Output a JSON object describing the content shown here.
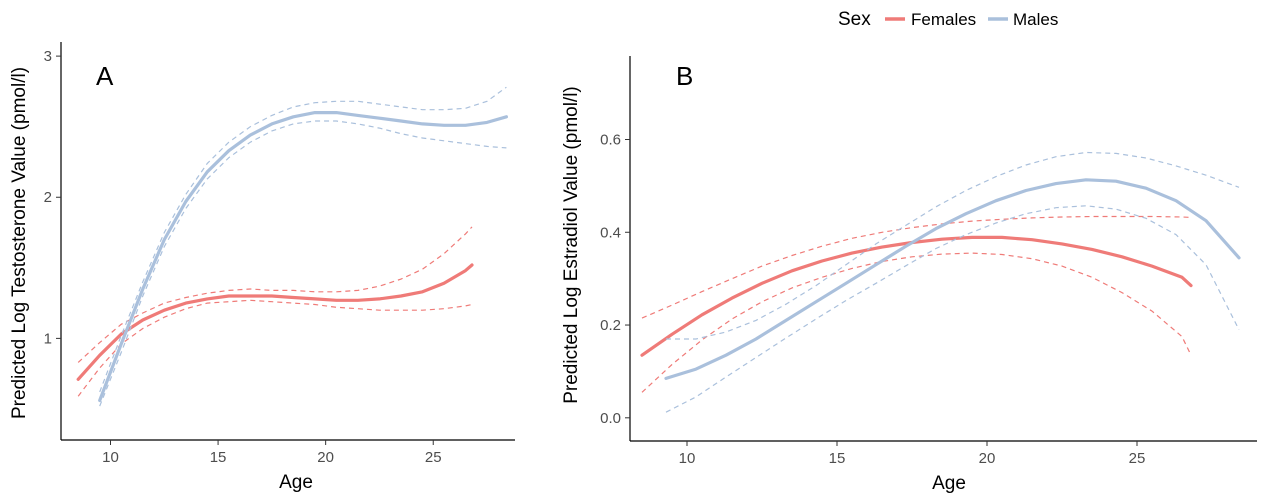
{
  "legend": {
    "title": "Sex",
    "items": [
      {
        "label": "Females",
        "color": "#ef7b78"
      },
      {
        "label": "Males",
        "color": "#aac0dc"
      }
    ]
  },
  "chart_data": [
    {
      "type": "line",
      "panel_label": "A",
      "xlabel": "Age",
      "ylabel": "Predicted Log Testosterone Value (pmol/l)",
      "xlim": [
        7.7,
        28.8
      ],
      "ylim": [
        0.28,
        3.1
      ],
      "xticks": [
        10,
        15,
        20,
        25
      ],
      "yticks": [
        1,
        2,
        3
      ],
      "grid": false,
      "legend_position": "top",
      "series": [
        {
          "name": "Females",
          "color": "#ef7b78",
          "x": [
            8.5,
            9.5,
            10.5,
            11.5,
            12.5,
            13.5,
            14.5,
            15.5,
            16.5,
            17.5,
            18.5,
            19.5,
            20.5,
            21.5,
            22.5,
            23.5,
            24.5,
            25.5,
            26.5,
            26.8
          ],
          "fit": [
            0.71,
            0.88,
            1.03,
            1.13,
            1.2,
            1.25,
            1.28,
            1.3,
            1.3,
            1.3,
            1.29,
            1.28,
            1.27,
            1.27,
            1.28,
            1.3,
            1.33,
            1.39,
            1.48,
            1.52
          ],
          "upper": [
            0.83,
            0.97,
            1.1,
            1.18,
            1.25,
            1.29,
            1.32,
            1.34,
            1.35,
            1.34,
            1.34,
            1.33,
            1.33,
            1.34,
            1.37,
            1.42,
            1.49,
            1.6,
            1.74,
            1.79
          ],
          "lower": [
            0.59,
            0.79,
            0.96,
            1.07,
            1.15,
            1.21,
            1.25,
            1.26,
            1.27,
            1.26,
            1.25,
            1.24,
            1.22,
            1.21,
            1.2,
            1.2,
            1.2,
            1.21,
            1.23,
            1.24
          ]
        },
        {
          "name": "Males",
          "color": "#aac0dc",
          "x": [
            9.5,
            10.5,
            11.5,
            12.5,
            13.5,
            14.5,
            15.5,
            16.5,
            17.5,
            18.5,
            19.5,
            20.5,
            21.5,
            22.5,
            23.5,
            24.5,
            25.5,
            26.5,
            27.5,
            28.4
          ],
          "fit": [
            0.56,
            0.96,
            1.35,
            1.7,
            1.97,
            2.18,
            2.33,
            2.44,
            2.52,
            2.57,
            2.6,
            2.6,
            2.58,
            2.56,
            2.54,
            2.52,
            2.51,
            2.51,
            2.53,
            2.57
          ],
          "upper": [
            0.62,
            1.02,
            1.4,
            1.75,
            2.02,
            2.24,
            2.39,
            2.5,
            2.58,
            2.64,
            2.67,
            2.68,
            2.68,
            2.66,
            2.64,
            2.62,
            2.62,
            2.63,
            2.68,
            2.78
          ],
          "lower": [
            0.52,
            0.9,
            1.3,
            1.65,
            1.92,
            2.13,
            2.28,
            2.39,
            2.47,
            2.52,
            2.54,
            2.54,
            2.52,
            2.49,
            2.45,
            2.42,
            2.4,
            2.38,
            2.36,
            2.35
          ]
        }
      ]
    },
    {
      "type": "line",
      "panel_label": "B",
      "xlabel": "Age",
      "ylabel": "Predicted Log Estradiol Value (pmol/l)",
      "xlim": [
        8.1,
        29.0
      ],
      "ylim": [
        -0.05,
        0.78
      ],
      "xticks": [
        10,
        15,
        20,
        25
      ],
      "yticks": [
        0.0,
        0.2,
        0.4,
        0.6
      ],
      "ytick_labels": [
        "0.0",
        "0.2",
        "0.4",
        "0.6"
      ],
      "grid": false,
      "series": [
        {
          "name": "Females",
          "color": "#ef7b78",
          "x": [
            8.5,
            9.5,
            10.5,
            11.5,
            12.5,
            13.5,
            14.5,
            15.5,
            16.5,
            17.5,
            18.5,
            19.5,
            20.5,
            21.5,
            22.5,
            23.5,
            24.5,
            25.5,
            26.5,
            26.8
          ],
          "fit": [
            0.135,
            0.18,
            0.222,
            0.258,
            0.29,
            0.317,
            0.338,
            0.355,
            0.368,
            0.378,
            0.385,
            0.389,
            0.389,
            0.384,
            0.375,
            0.363,
            0.347,
            0.327,
            0.303,
            0.285
          ],
          "upper": [
            0.215,
            0.243,
            0.272,
            0.3,
            0.327,
            0.35,
            0.37,
            0.387,
            0.4,
            0.41,
            0.418,
            0.424,
            0.428,
            0.431,
            0.433,
            0.434,
            0.434,
            0.434,
            0.433,
            0.432
          ],
          "lower": [
            0.055,
            0.115,
            0.168,
            0.213,
            0.25,
            0.28,
            0.303,
            0.322,
            0.337,
            0.347,
            0.353,
            0.355,
            0.352,
            0.343,
            0.327,
            0.303,
            0.27,
            0.23,
            0.175,
            0.135
          ]
        },
        {
          "name": "Males",
          "color": "#aac0dc",
          "x": [
            9.3,
            10.3,
            11.3,
            12.3,
            13.3,
            14.3,
            15.3,
            16.3,
            17.3,
            18.3,
            19.3,
            20.3,
            21.3,
            22.3,
            23.3,
            24.3,
            25.3,
            26.3,
            27.3,
            28.4
          ],
          "fit": [
            0.085,
            0.105,
            0.135,
            0.17,
            0.21,
            0.25,
            0.29,
            0.33,
            0.37,
            0.408,
            0.44,
            0.468,
            0.49,
            0.505,
            0.513,
            0.51,
            0.495,
            0.468,
            0.425,
            0.345
          ],
          "upper": [
            0.17,
            0.17,
            0.185,
            0.21,
            0.245,
            0.285,
            0.33,
            0.375,
            0.415,
            0.455,
            0.49,
            0.52,
            0.545,
            0.563,
            0.572,
            0.57,
            0.56,
            0.543,
            0.523,
            0.497
          ],
          "lower": [
            0.012,
            0.045,
            0.088,
            0.13,
            0.172,
            0.213,
            0.253,
            0.29,
            0.328,
            0.365,
            0.395,
            0.42,
            0.44,
            0.453,
            0.457,
            0.45,
            0.43,
            0.395,
            0.33,
            0.19
          ]
        }
      ]
    }
  ]
}
